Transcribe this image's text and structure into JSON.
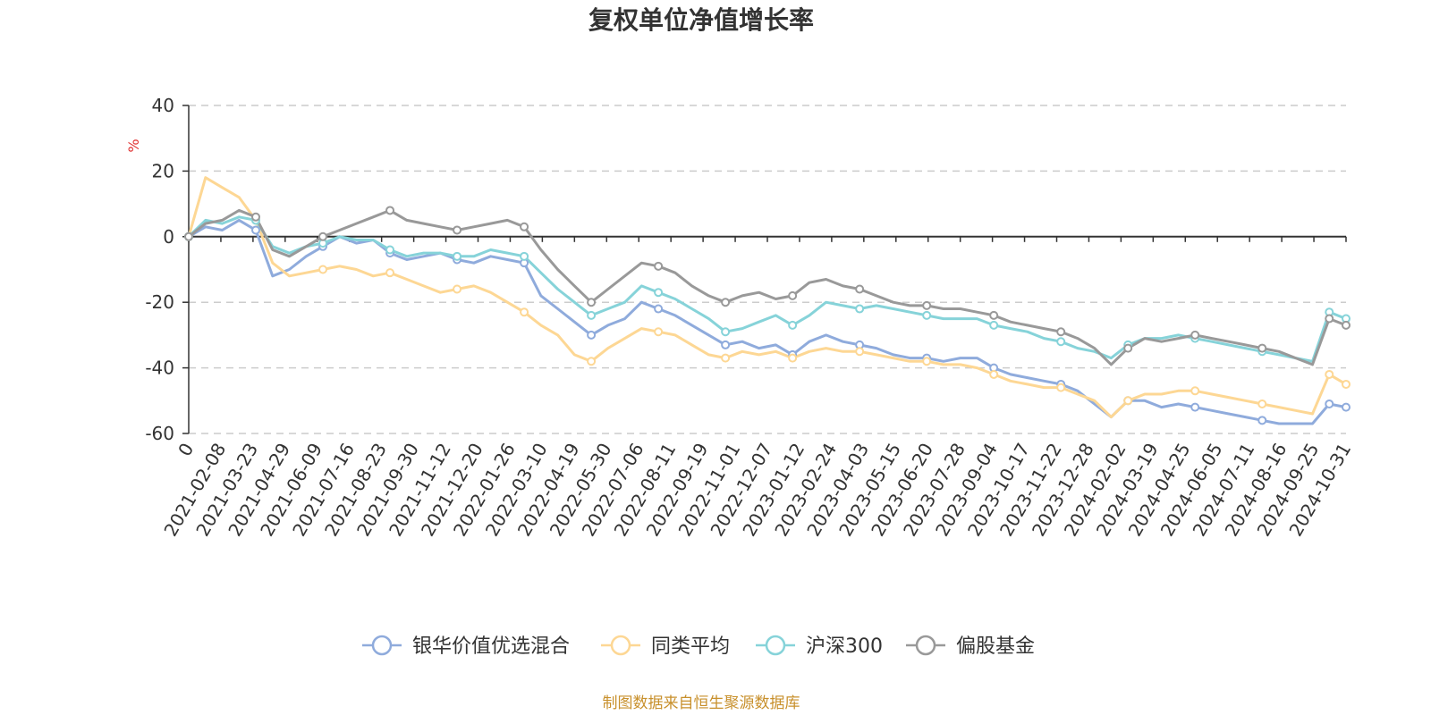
{
  "chart_data": {
    "type": "line",
    "title": "复权单位净值增长率",
    "ylabel": "%",
    "ylim": [
      -60,
      40
    ],
    "yticks": [
      40,
      20,
      0,
      -20,
      -40,
      -60
    ],
    "xticks": [
      "0",
      "2021-02-08",
      "2021-03-23",
      "2021-04-29",
      "2021-06-09",
      "2021-07-16",
      "2021-08-23",
      "2021-09-30",
      "2021-11-12",
      "2021-12-20",
      "2022-01-26",
      "2022-03-10",
      "2022-04-19",
      "2022-05-30",
      "2022-07-06",
      "2022-08-11",
      "2022-09-19",
      "2022-11-01",
      "2022-12-07",
      "2023-01-12",
      "2023-02-24",
      "2023-04-03",
      "2023-05-15",
      "2023-06-20",
      "2023-07-28",
      "2023-09-04",
      "2023-10-17",
      "2023-11-22",
      "2023-12-28",
      "2024-02-02",
      "2024-03-19",
      "2024-04-25",
      "2024-06-05",
      "2024-07-11",
      "2024-08-16",
      "2024-09-25",
      "2024-10-31"
    ],
    "grid": true,
    "legend_position": "bottom",
    "series": [
      {
        "name": "银华价值优选混合",
        "color": "#8fabdc",
        "values": [
          0,
          3,
          2,
          5,
          2,
          -12,
          -10,
          -6,
          -3,
          0,
          -2,
          -1,
          -5,
          -7,
          -6,
          -5,
          -7,
          -8,
          -6,
          -7,
          -8,
          -18,
          -22,
          -26,
          -30,
          -27,
          -25,
          -20,
          -22,
          -24,
          -27,
          -30,
          -33,
          -32,
          -34,
          -33,
          -36,
          -32,
          -30,
          -32,
          -33,
          -34,
          -36,
          -37,
          -37,
          -38,
          -37,
          -37,
          -40,
          -42,
          -43,
          -44,
          -45,
          -47,
          -51,
          -55,
          -50,
          -50,
          -52,
          -51,
          -52,
          -53,
          -54,
          -55,
          -56,
          -57,
          -57,
          -57,
          -51,
          -52
        ]
      },
      {
        "name": "同类平均",
        "color": "#fdd794",
        "values": [
          0,
          18,
          15,
          12,
          5,
          -8,
          -12,
          -11,
          -10,
          -9,
          -10,
          -12,
          -11,
          -13,
          -15,
          -17,
          -16,
          -15,
          -17,
          -20,
          -23,
          -27,
          -30,
          -36,
          -38,
          -34,
          -31,
          -28,
          -29,
          -30,
          -33,
          -36,
          -37,
          -35,
          -36,
          -35,
          -37,
          -35,
          -34,
          -35,
          -35,
          -36,
          -37,
          -38,
          -38,
          -39,
          -39,
          -40,
          -42,
          -44,
          -45,
          -46,
          -46,
          -48,
          -50,
          -55,
          -50,
          -48,
          -48,
          -47,
          -47,
          -48,
          -49,
          -50,
          -51,
          -52,
          -53,
          -54,
          -42,
          -45
        ]
      },
      {
        "name": "沪深300",
        "color": "#86d3d9",
        "values": [
          0,
          5,
          4,
          6,
          5,
          -3,
          -5,
          -3,
          -2,
          0,
          -1,
          -1,
          -4,
          -6,
          -5,
          -5,
          -6,
          -6,
          -4,
          -5,
          -6,
          -11,
          -16,
          -20,
          -24,
          -22,
          -20,
          -15,
          -17,
          -19,
          -22,
          -25,
          -29,
          -28,
          -26,
          -24,
          -27,
          -24,
          -20,
          -21,
          -22,
          -21,
          -22,
          -23,
          -24,
          -25,
          -25,
          -25,
          -27,
          -28,
          -29,
          -31,
          -32,
          -34,
          -35,
          -37,
          -33,
          -31,
          -31,
          -30,
          -31,
          -32,
          -33,
          -34,
          -35,
          -36,
          -37,
          -38,
          -23,
          -25
        ]
      },
      {
        "name": "偏股基金",
        "color": "#999999",
        "values": [
          0,
          4,
          5,
          8,
          6,
          -4,
          -6,
          -3,
          0,
          2,
          4,
          6,
          8,
          5,
          4,
          3,
          2,
          3,
          4,
          5,
          3,
          -4,
          -10,
          -15,
          -20,
          -16,
          -12,
          -8,
          -9,
          -11,
          -15,
          -18,
          -20,
          -18,
          -17,
          -19,
          -18,
          -14,
          -13,
          -15,
          -16,
          -18,
          -20,
          -21,
          -21,
          -22,
          -22,
          -23,
          -24,
          -26,
          -27,
          -28,
          -29,
          -31,
          -34,
          -39,
          -34,
          -31,
          -32,
          -31,
          -30,
          -31,
          -32,
          -33,
          -34,
          -35,
          -37,
          -39,
          -25,
          -27
        ]
      }
    ]
  },
  "source": "制图数据来自恒生聚源数据库"
}
